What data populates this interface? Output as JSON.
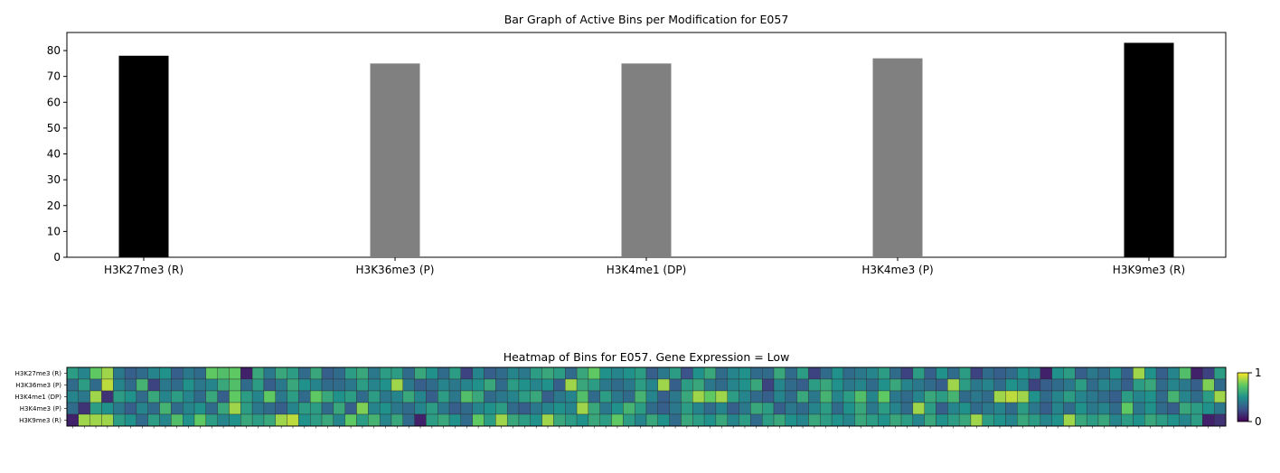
{
  "chart_data": [
    {
      "type": "bar",
      "title": "Bar Graph of Active Bins per Modification for E057",
      "categories": [
        "H3K27me3 (R)",
        "H3K36me3 (P)",
        "H3K4me1 (DP)",
        "H3K4me3 (P)",
        "H3K9me3 (R)"
      ],
      "values": [
        78,
        75,
        75,
        77,
        83
      ],
      "bar_colors": [
        "#000000",
        "#808080",
        "#808080",
        "#808080",
        "#000000"
      ],
      "ylim": [
        0,
        87
      ],
      "yticks": [
        0,
        10,
        20,
        30,
        40,
        50,
        60,
        70,
        80
      ],
      "xlabel": "",
      "ylabel": "",
      "grid": false
    },
    {
      "type": "heatmap",
      "title": "Heatmap of Bins for E057. Gene Expression = Low",
      "rows": [
        "H3K27me3 (R)",
        "H3K36me3 (P)",
        "H3K4me1 (DP)",
        "H3K4me3 (P)",
        "H3K9me3 (R)"
      ],
      "n_bins": 100,
      "colormap": "viridis",
      "colorbar_ticks": [
        "0",
        "1"
      ],
      "vmin": 0,
      "vmax": 1,
      "values": [
        [
          0.55,
          0.45,
          0.75,
          0.85,
          0.4,
          0.3,
          0.35,
          0.45,
          0.5,
          0.3,
          0.4,
          0.35,
          0.75,
          0.7,
          0.75,
          0.1,
          0.6,
          0.4,
          0.6,
          0.55,
          0.35,
          0.6,
          0.3,
          0.35,
          0.55,
          0.6,
          0.4,
          0.55,
          0.55,
          0.35,
          0.6,
          0.5,
          0.35,
          0.55,
          0.2,
          0.45,
          0.3,
          0.35,
          0.45,
          0.4,
          0.55,
          0.6,
          0.55,
          0.35,
          0.6,
          0.75,
          0.5,
          0.45,
          0.5,
          0.55,
          0.3,
          0.4,
          0.55,
          0.25,
          0.5,
          0.6,
          0.35,
          0.45,
          0.5,
          0.35,
          0.35,
          0.6,
          0.35,
          0.55,
          0.2,
          0.35,
          0.5,
          0.35,
          0.4,
          0.45,
          0.55,
          0.35,
          0.2,
          0.55,
          0.3,
          0.5,
          0.35,
          0.55,
          0.2,
          0.35,
          0.3,
          0.35,
          0.5,
          0.45,
          0.1,
          0.5,
          0.55,
          0.3,
          0.4,
          0.35,
          0.5,
          0.3,
          0.85,
          0.5,
          0.3,
          0.45,
          0.7,
          0.1,
          0.2,
          0.55
        ],
        [
          0.35,
          0.55,
          0.35,
          0.9,
          0.45,
          0.35,
          0.65,
          0.2,
          0.4,
          0.35,
          0.5,
          0.4,
          0.45,
          0.6,
          0.7,
          0.35,
          0.55,
          0.3,
          0.4,
          0.6,
          0.5,
          0.45,
          0.35,
          0.35,
          0.4,
          0.55,
          0.45,
          0.5,
          0.85,
          0.4,
          0.3,
          0.35,
          0.45,
          0.4,
          0.45,
          0.5,
          0.6,
          0.35,
          0.55,
          0.5,
          0.45,
          0.5,
          0.3,
          0.85,
          0.6,
          0.55,
          0.4,
          0.35,
          0.4,
          0.55,
          0.45,
          0.85,
          0.3,
          0.55,
          0.6,
          0.4,
          0.35,
          0.45,
          0.5,
          0.6,
          0.2,
          0.45,
          0.35,
          0.3,
          0.55,
          0.6,
          0.5,
          0.4,
          0.45,
          0.35,
          0.5,
          0.6,
          0.45,
          0.4,
          0.35,
          0.3,
          0.85,
          0.55,
          0.4,
          0.45,
          0.35,
          0.5,
          0.45,
          0.2,
          0.3,
          0.35,
          0.4,
          0.55,
          0.35,
          0.45,
          0.4,
          0.3,
          0.55,
          0.6,
          0.35,
          0.45,
          0.4,
          0.3,
          0.8,
          0.35
        ],
        [
          0.45,
          0.4,
          0.85,
          0.15,
          0.55,
          0.5,
          0.35,
          0.6,
          0.45,
          0.55,
          0.45,
          0.35,
          0.6,
          0.3,
          0.75,
          0.55,
          0.45,
          0.75,
          0.4,
          0.55,
          0.35,
          0.75,
          0.6,
          0.5,
          0.55,
          0.35,
          0.55,
          0.4,
          0.45,
          0.6,
          0.45,
          0.3,
          0.55,
          0.4,
          0.7,
          0.6,
          0.35,
          0.4,
          0.45,
          0.55,
          0.6,
          0.3,
          0.4,
          0.45,
          0.7,
          0.35,
          0.55,
          0.4,
          0.35,
          0.65,
          0.45,
          0.3,
          0.4,
          0.6,
          0.85,
          0.75,
          0.85,
          0.55,
          0.45,
          0.35,
          0.3,
          0.45,
          0.35,
          0.6,
          0.4,
          0.65,
          0.45,
          0.55,
          0.7,
          0.45,
          0.75,
          0.4,
          0.35,
          0.45,
          0.6,
          0.55,
          0.65,
          0.35,
          0.4,
          0.35,
          0.85,
          0.9,
          0.85,
          0.5,
          0.35,
          0.45,
          0.55,
          0.45,
          0.4,
          0.35,
          0.3,
          0.55,
          0.45,
          0.5,
          0.35,
          0.65,
          0.45,
          0.35,
          0.55,
          0.85
        ],
        [
          0.35,
          0.15,
          0.55,
          0.5,
          0.4,
          0.3,
          0.45,
          0.35,
          0.65,
          0.35,
          0.45,
          0.5,
          0.35,
          0.6,
          0.85,
          0.55,
          0.4,
          0.35,
          0.3,
          0.45,
          0.55,
          0.55,
          0.35,
          0.6,
          0.3,
          0.8,
          0.45,
          0.5,
          0.4,
          0.35,
          0.45,
          0.55,
          0.4,
          0.3,
          0.35,
          0.45,
          0.5,
          0.55,
          0.35,
          0.3,
          0.4,
          0.45,
          0.5,
          0.45,
          0.85,
          0.6,
          0.4,
          0.5,
          0.65,
          0.55,
          0.35,
          0.3,
          0.4,
          0.55,
          0.45,
          0.35,
          0.45,
          0.3,
          0.4,
          0.6,
          0.55,
          0.3,
          0.4,
          0.35,
          0.45,
          0.55,
          0.35,
          0.5,
          0.6,
          0.4,
          0.55,
          0.45,
          0.35,
          0.85,
          0.55,
          0.3,
          0.45,
          0.5,
          0.35,
          0.4,
          0.45,
          0.35,
          0.55,
          0.4,
          0.3,
          0.45,
          0.35,
          0.5,
          0.4,
          0.45,
          0.35,
          0.75,
          0.4,
          0.5,
          0.35,
          0.3,
          0.6,
          0.55,
          0.5,
          0.4
        ],
        [
          0.1,
          0.85,
          0.85,
          0.85,
          0.55,
          0.5,
          0.35,
          0.55,
          0.45,
          0.7,
          0.5,
          0.75,
          0.55,
          0.45,
          0.5,
          0.6,
          0.55,
          0.6,
          0.85,
          0.9,
          0.5,
          0.55,
          0.6,
          0.45,
          0.75,
          0.55,
          0.65,
          0.45,
          0.6,
          0.35,
          0.1,
          0.55,
          0.6,
          0.5,
          0.35,
          0.75,
          0.55,
          0.85,
          0.6,
          0.55,
          0.5,
          0.85,
          0.6,
          0.55,
          0.5,
          0.6,
          0.55,
          0.75,
          0.55,
          0.45,
          0.6,
          0.5,
          0.35,
          0.6,
          0.55,
          0.5,
          0.6,
          0.45,
          0.55,
          0.35,
          0.55,
          0.6,
          0.5,
          0.45,
          0.6,
          0.55,
          0.5,
          0.45,
          0.6,
          0.55,
          0.5,
          0.6,
          0.55,
          0.45,
          0.6,
          0.5,
          0.55,
          0.6,
          0.85,
          0.55,
          0.5,
          0.45,
          0.6,
          0.55,
          0.45,
          0.5,
          0.85,
          0.6,
          0.55,
          0.6,
          0.45,
          0.55,
          0.5,
          0.6,
          0.55,
          0.5,
          0.45,
          0.55,
          0.1,
          0.15
        ]
      ]
    }
  ]
}
